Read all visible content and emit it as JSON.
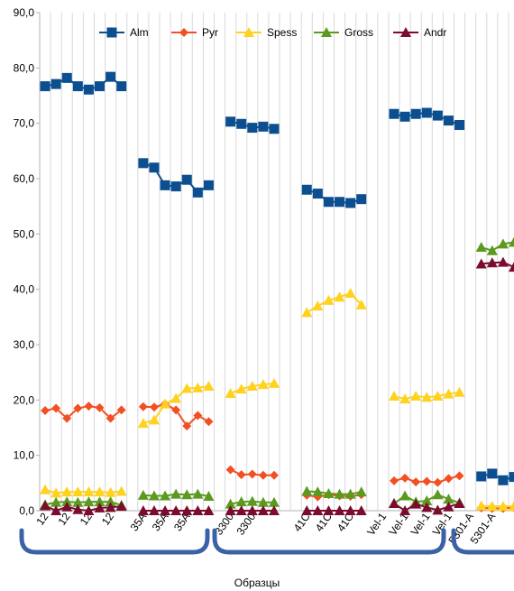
{
  "chart_data": {
    "type": "line",
    "xlabel": "Образцы",
    "ylabel": "",
    "ylim": [
      0,
      90
    ],
    "yticks": [
      "0,0",
      "10,0",
      "20,0",
      "30,0",
      "40,0",
      "50,0",
      "60,0",
      "70,0",
      "80,0",
      "90,0"
    ],
    "legend_position": "top",
    "grid": "vertical",
    "categories": [
      "12",
      "12",
      "12",
      "12",
      "12",
      "12",
      "12",
      "12",
      "",
      "35A",
      "35A",
      "35A",
      "35A",
      "35A",
      "35A",
      "35A",
      "",
      "3300",
      "3300",
      "3300",
      "3300",
      "3300",
      "3300",
      "",
      "41C",
      "41C",
      "41C",
      "41C",
      "41C",
      "41C",
      "41C",
      "",
      "Vel-1",
      "Vel-1",
      "Vel-1",
      "Vel-1",
      "Vel-1",
      "Vel-1",
      "Vel-1",
      "",
      "5301-A",
      "5301-A",
      "5301-A",
      "5301-A"
    ],
    "visible_tick_labels": [
      {
        "index": 0,
        "label": "12"
      },
      {
        "index": 2,
        "label": "12"
      },
      {
        "index": 4,
        "label": "12"
      },
      {
        "index": 6,
        "label": "12"
      },
      {
        "index": 9,
        "label": "35A"
      },
      {
        "index": 11,
        "label": "35A"
      },
      {
        "index": 13,
        "label": "35A"
      },
      {
        "index": 17,
        "label": "3300"
      },
      {
        "index": 19,
        "label": "3300"
      },
      {
        "index": 24,
        "label": "41C"
      },
      {
        "index": 26,
        "label": "41C"
      },
      {
        "index": 28,
        "label": "41C"
      },
      {
        "index": 31,
        "label": "Vel-1"
      },
      {
        "index": 33,
        "label": "Vel-1"
      },
      {
        "index": 35,
        "label": "Vel-1"
      },
      {
        "index": 37,
        "label": "Vel-1"
      },
      {
        "index": 39,
        "label": "5301-A"
      },
      {
        "index": 41,
        "label": "5301-A"
      }
    ],
    "series": [
      {
        "name": "Alm",
        "color": "#0B4F91",
        "marker": "square",
        "values": [
          76.7,
          77.1,
          78.2,
          76.7,
          76.1,
          76.7,
          78.4,
          76.7,
          null,
          62.8,
          62.0,
          58.8,
          58.6,
          59.8,
          57.5,
          58.8,
          null,
          70.3,
          69.9,
          69.2,
          69.4,
          69.0,
          null,
          null,
          58.0,
          57.3,
          55.8,
          55.8,
          55.6,
          56.3,
          null,
          null,
          71.7,
          71.2,
          71.7,
          71.9,
          71.4,
          70.5,
          69.7,
          null,
          6.2,
          6.7,
          5.5,
          6.1
        ]
      },
      {
        "name": "Pyr",
        "color": "#F25022",
        "marker": "diamond",
        "values": [
          18.1,
          18.5,
          16.7,
          18.5,
          18.9,
          18.6,
          16.7,
          18.2,
          null,
          18.8,
          18.7,
          19.3,
          18.2,
          15.3,
          17.2,
          16.1,
          null,
          7.4,
          6.5,
          6.6,
          6.4,
          6.4,
          null,
          null,
          2.8,
          2.5,
          2.9,
          2.7,
          2.6,
          2.9,
          null,
          null,
          5.4,
          5.9,
          5.2,
          5.3,
          5.1,
          5.8,
          6.3,
          null,
          0.5,
          0.4,
          0.4,
          0.6
        ]
      },
      {
        "name": "Spess",
        "color": "#FFD21F",
        "marker": "triangle",
        "values": [
          3.8,
          3.2,
          3.4,
          3.4,
          3.4,
          3.4,
          3.3,
          3.5,
          null,
          15.8,
          16.4,
          19.3,
          20.3,
          22.1,
          22.2,
          22.5,
          null,
          21.2,
          22.0,
          22.5,
          22.8,
          23.0,
          null,
          null,
          35.8,
          37.0,
          38.0,
          38.6,
          39.3,
          37.2,
          null,
          null,
          20.7,
          20.2,
          20.7,
          20.5,
          20.7,
          21.1,
          21.4,
          null,
          0.9,
          0.8,
          0.8,
          0.8
        ]
      },
      {
        "name": "Gross",
        "color": "#5B9A1E",
        "marker": "triangle",
        "values": [
          1.1,
          1.5,
          1.6,
          1.5,
          1.6,
          1.6,
          1.6,
          1.0,
          null,
          2.8,
          2.7,
          2.7,
          3.0,
          2.9,
          3.0,
          2.6,
          null,
          1.2,
          1.6,
          1.7,
          1.5,
          1.5,
          null,
          null,
          3.5,
          3.4,
          3.1,
          3.0,
          3.0,
          3.4,
          null,
          null,
          1.3,
          2.7,
          1.6,
          1.8,
          2.9,
          2.1,
          1.4,
          null,
          47.6,
          47.0,
          48.2,
          48.5
        ]
      },
      {
        "name": "Andr",
        "color": "#7B0C2E",
        "marker": "triangle",
        "values": [
          0.9,
          0.0,
          0.7,
          0.2,
          0.0,
          0.5,
          0.6,
          0.8,
          null,
          0.0,
          0.0,
          0.0,
          0.0,
          0.0,
          0.0,
          0.0,
          null,
          0.0,
          0.0,
          0.0,
          0.0,
          0.0,
          null,
          null,
          0.0,
          0.0,
          0.0,
          0.0,
          0.0,
          0.0,
          null,
          null,
          1.3,
          0.0,
          1.2,
          0.6,
          0.1,
          0.7,
          1.3,
          null,
          44.6,
          44.8,
          44.9,
          44.0
        ]
      }
    ]
  }
}
